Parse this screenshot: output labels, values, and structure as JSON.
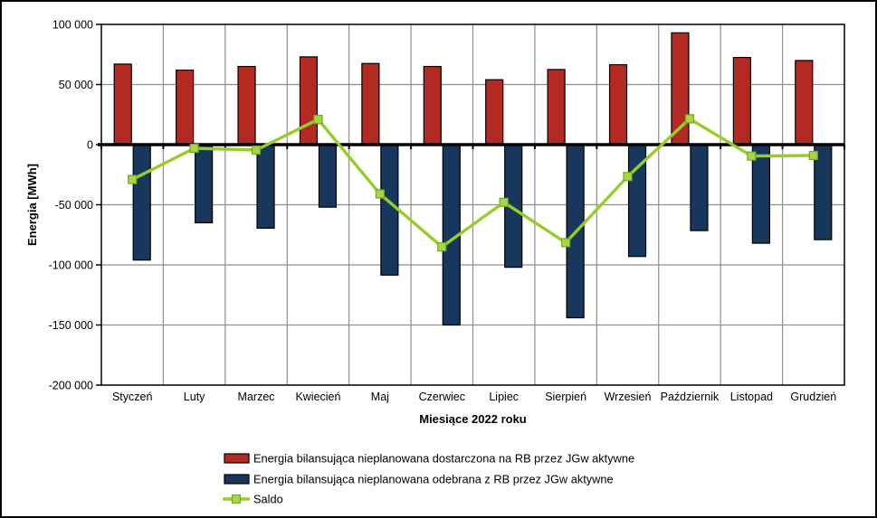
{
  "chart_data": {
    "type": "bar",
    "title": "",
    "xlabel": "Miesiące 2022 roku",
    "ylabel": "Energia [MWh]",
    "ylim": [
      -200000,
      100000
    ],
    "ytick_step": 50000,
    "grid": true,
    "legend_position": "bottom",
    "categories": [
      "Styczeń",
      "Luty",
      "Marzec",
      "Kwiecień",
      "Maj",
      "Czerwiec",
      "Lipiec",
      "Sierpień",
      "Wrzesień",
      "Październik",
      "Listopad",
      "Grudzień"
    ],
    "y_tick_labels": [
      "100 000",
      "50 000",
      "0",
      "-50 000",
      "-100 000",
      "-150 000",
      "-200 000"
    ],
    "y_tick_values": [
      100000,
      50000,
      0,
      -50000,
      -100000,
      -150000,
      -200000
    ],
    "series": [
      {
        "name": "Energia bilansująca nieplanowana dostarczona na RB przez JGw aktywne",
        "type": "bar",
        "color": "#b22a22",
        "values": [
          67000,
          62000,
          65000,
          73000,
          67500,
          65000,
          54000,
          62500,
          66500,
          93000,
          72500,
          70000
        ]
      },
      {
        "name": "Energia bilansująca nieplanowana odebrana z RB przez JGw aktywne",
        "type": "bar",
        "color": "#17375d",
        "values": [
          -96000,
          -65000,
          -69500,
          -52000,
          -108500,
          -150000,
          -102000,
          -144000,
          -93000,
          -71500,
          -82000,
          -79000
        ]
      },
      {
        "name": "Saldo",
        "type": "line",
        "color": "#96cd28",
        "marker_fill": "#a5d647",
        "marker_stroke": "#76a81e",
        "values": [
          -29000,
          -3000,
          -4500,
          21000,
          -41000,
          -85000,
          -48000,
          -81500,
          -26500,
          21500,
          -9500,
          -9000
        ]
      }
    ],
    "colors": {
      "grid": "#8f8f8f",
      "axis": "#000000",
      "plot_border": "#000000",
      "background": "#ffffff"
    }
  }
}
